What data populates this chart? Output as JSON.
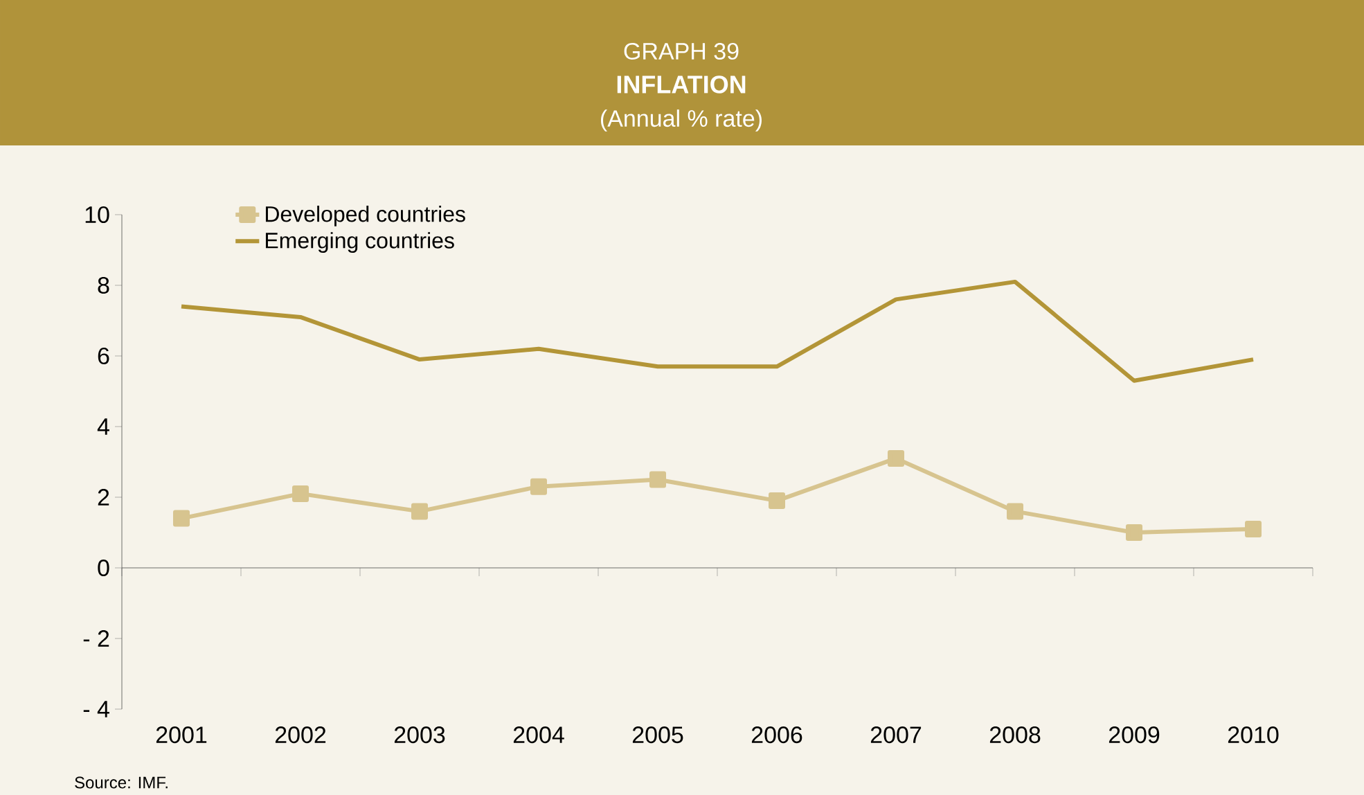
{
  "chart_data": {
    "type": "line",
    "title": "GRAPH 39",
    "subtitle": "INFLATION",
    "annotations": [
      "(Annual % rate)",
      "Source: IMF."
    ],
    "categories": [
      "2001",
      "2002",
      "2003",
      "2004",
      "2005",
      "2006",
      "2007",
      "2008",
      "2009",
      "2010"
    ],
    "series": [
      {
        "name": "Developed countries",
        "color": "#d7c48f",
        "marker": "square",
        "values": [
          1.4,
          2.1,
          1.6,
          2.3,
          2.5,
          1.9,
          3.1,
          1.6,
          1.0,
          1.1
        ]
      },
      {
        "name": "Emerging countries",
        "color": "#b39537",
        "marker": "none",
        "values": [
          7.4,
          7.1,
          5.9,
          6.2,
          5.7,
          5.7,
          7.6,
          8.1,
          5.3,
          5.9
        ]
      }
    ],
    "ylim": [
      -4,
      10
    ],
    "yticks": [
      {
        "value": -4,
        "label": "- 4"
      },
      {
        "value": -2,
        "label": "- 2"
      },
      0,
      2,
      4,
      6,
      8,
      10
    ],
    "legend": "top left",
    "line_style": "solid"
  }
}
